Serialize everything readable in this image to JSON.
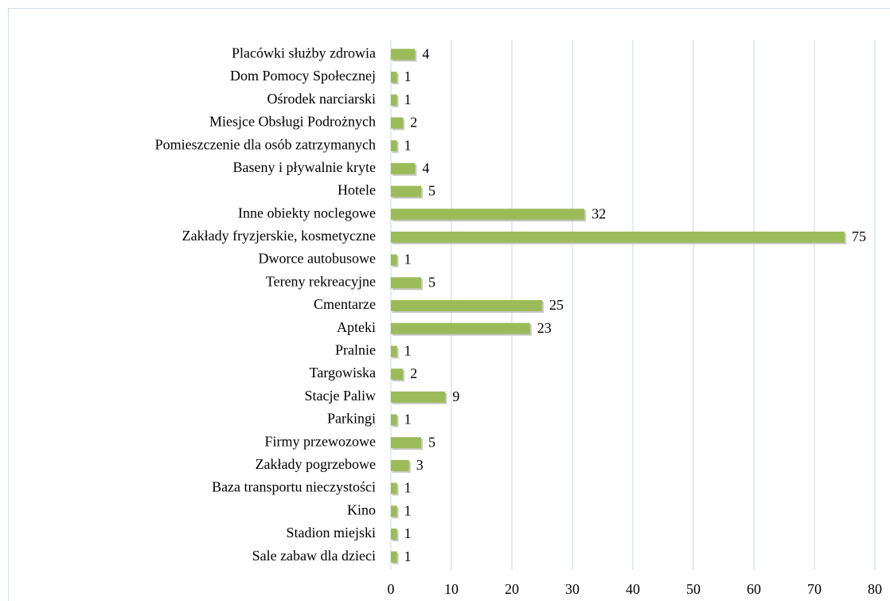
{
  "chart_data": {
    "type": "bar",
    "orientation": "horizontal",
    "categories": [
      "Placówki służby zdrowia",
      "Dom Pomocy Społecznej",
      "Ośrodek narciarski",
      "Miesjce Obsługi Podrożnych",
      "Pomieszczenie dla osób zatrzymanych",
      "Baseny i pływalnie kryte",
      "Hotele",
      "Inne obiekty noclegowe",
      "Zakłady fryzjerskie, kosmetyczne",
      "Dworce autobusowe",
      "Tereny rekreacyjne",
      "Cmentarze",
      "Apteki",
      "Pralnie",
      "Targowiska",
      "Stacje Paliw",
      "Parkingi",
      "Firmy przewozowe",
      "Zakłady pogrzebowe",
      "Baza transportu nieczystości",
      "Kino",
      "Stadion miejski",
      "Sale zabaw dla dzieci"
    ],
    "values": [
      4,
      1,
      1,
      2,
      1,
      4,
      5,
      32,
      75,
      1,
      5,
      25,
      23,
      1,
      2,
      9,
      1,
      5,
      3,
      1,
      1,
      1,
      1
    ],
    "color": "#9bbb59",
    "xlim": [
      0,
      80
    ],
    "xticks": [
      0,
      10,
      20,
      30,
      40,
      50,
      60,
      70,
      80
    ],
    "grid": true
  }
}
